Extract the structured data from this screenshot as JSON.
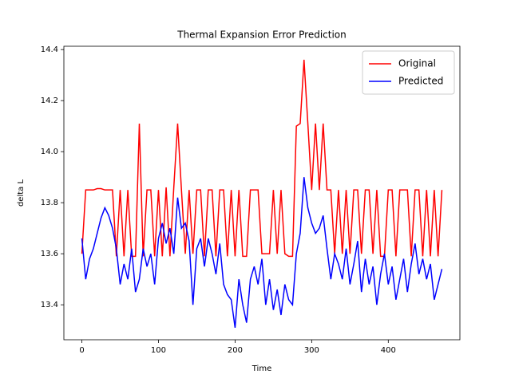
{
  "chart_data": {
    "type": "line",
    "title": "Thermal Expansion Error Prediction",
    "x_label": "Time",
    "y_label": "delta L",
    "x": [
      0,
      5,
      10,
      15,
      20,
      25,
      30,
      35,
      40,
      45,
      50,
      55,
      60,
      65,
      70,
      75,
      80,
      85,
      90,
      95,
      100,
      105,
      110,
      115,
      120,
      125,
      130,
      135,
      140,
      145,
      150,
      155,
      160,
      165,
      170,
      175,
      180,
      185,
      190,
      195,
      200,
      205,
      210,
      215,
      220,
      225,
      230,
      235,
      240,
      245,
      250,
      255,
      260,
      265,
      270,
      275,
      280,
      285,
      290,
      295,
      300,
      305,
      310,
      315,
      320,
      325,
      330,
      335,
      340,
      345,
      350,
      355,
      360,
      365,
      370,
      375,
      380,
      385,
      390,
      395,
      400,
      405,
      410,
      415,
      420,
      425,
      430,
      435,
      440,
      445,
      450,
      455,
      460,
      465,
      470
    ],
    "series": [
      {
        "name": "Original",
        "color": "#ff0000",
        "values": [
          13.6,
          13.85,
          13.85,
          13.85,
          13.855,
          13.855,
          13.85,
          13.85,
          13.85,
          13.59,
          13.85,
          13.59,
          13.85,
          13.59,
          13.59,
          14.11,
          13.59,
          13.85,
          13.85,
          13.59,
          13.85,
          13.59,
          13.86,
          13.59,
          13.86,
          14.11,
          13.85,
          13.6,
          13.85,
          13.6,
          13.85,
          13.85,
          13.59,
          13.85,
          13.85,
          13.59,
          13.85,
          13.85,
          13.59,
          13.85,
          13.59,
          13.85,
          13.59,
          13.59,
          13.85,
          13.85,
          13.85,
          13.6,
          13.6,
          13.6,
          13.85,
          13.6,
          13.85,
          13.6,
          13.59,
          13.59,
          14.1,
          14.11,
          14.36,
          14.11,
          13.85,
          14.11,
          13.85,
          14.11,
          13.85,
          13.85,
          13.6,
          13.85,
          13.6,
          13.85,
          13.6,
          13.85,
          13.85,
          13.6,
          13.85,
          13.85,
          13.6,
          13.85,
          13.59,
          13.59,
          13.85,
          13.85,
          13.59,
          13.85,
          13.85,
          13.85,
          13.59,
          13.85,
          13.85,
          13.59,
          13.85,
          13.59,
          13.85,
          13.59,
          13.85
        ]
      },
      {
        "name": "Predicted",
        "color": "#0000ff",
        "values": [
          13.66,
          13.5,
          13.58,
          13.62,
          13.68,
          13.74,
          13.78,
          13.75,
          13.7,
          13.62,
          13.48,
          13.56,
          13.5,
          13.62,
          13.45,
          13.5,
          13.62,
          13.55,
          13.6,
          13.48,
          13.66,
          13.72,
          13.64,
          13.7,
          13.6,
          13.82,
          13.7,
          13.72,
          13.65,
          13.4,
          13.62,
          13.66,
          13.55,
          13.66,
          13.6,
          13.52,
          13.64,
          13.48,
          13.44,
          13.42,
          13.31,
          13.5,
          13.4,
          13.33,
          13.5,
          13.55,
          13.48,
          13.58,
          13.4,
          13.5,
          13.38,
          13.46,
          13.36,
          13.48,
          13.42,
          13.4,
          13.6,
          13.68,
          13.9,
          13.78,
          13.72,
          13.68,
          13.7,
          13.75,
          13.62,
          13.5,
          13.6,
          13.56,
          13.5,
          13.62,
          13.48,
          13.56,
          13.65,
          13.45,
          13.58,
          13.48,
          13.55,
          13.4,
          13.52,
          13.6,
          13.48,
          13.55,
          13.42,
          13.5,
          13.58,
          13.45,
          13.56,
          13.64,
          13.52,
          13.58,
          13.5,
          13.56,
          13.42,
          13.48,
          13.54
        ]
      }
    ],
    "xlim": [
      -23.5,
      493.5
    ],
    "ylim": [
      13.263,
      14.413
    ],
    "xticks": [
      0,
      100,
      200,
      300,
      400
    ],
    "yticks": [
      13.4,
      13.6,
      13.8,
      {
        "value": 14,
        "label": "14.0"
      },
      14.2,
      14.4
    ],
    "legend": "upper right"
  }
}
